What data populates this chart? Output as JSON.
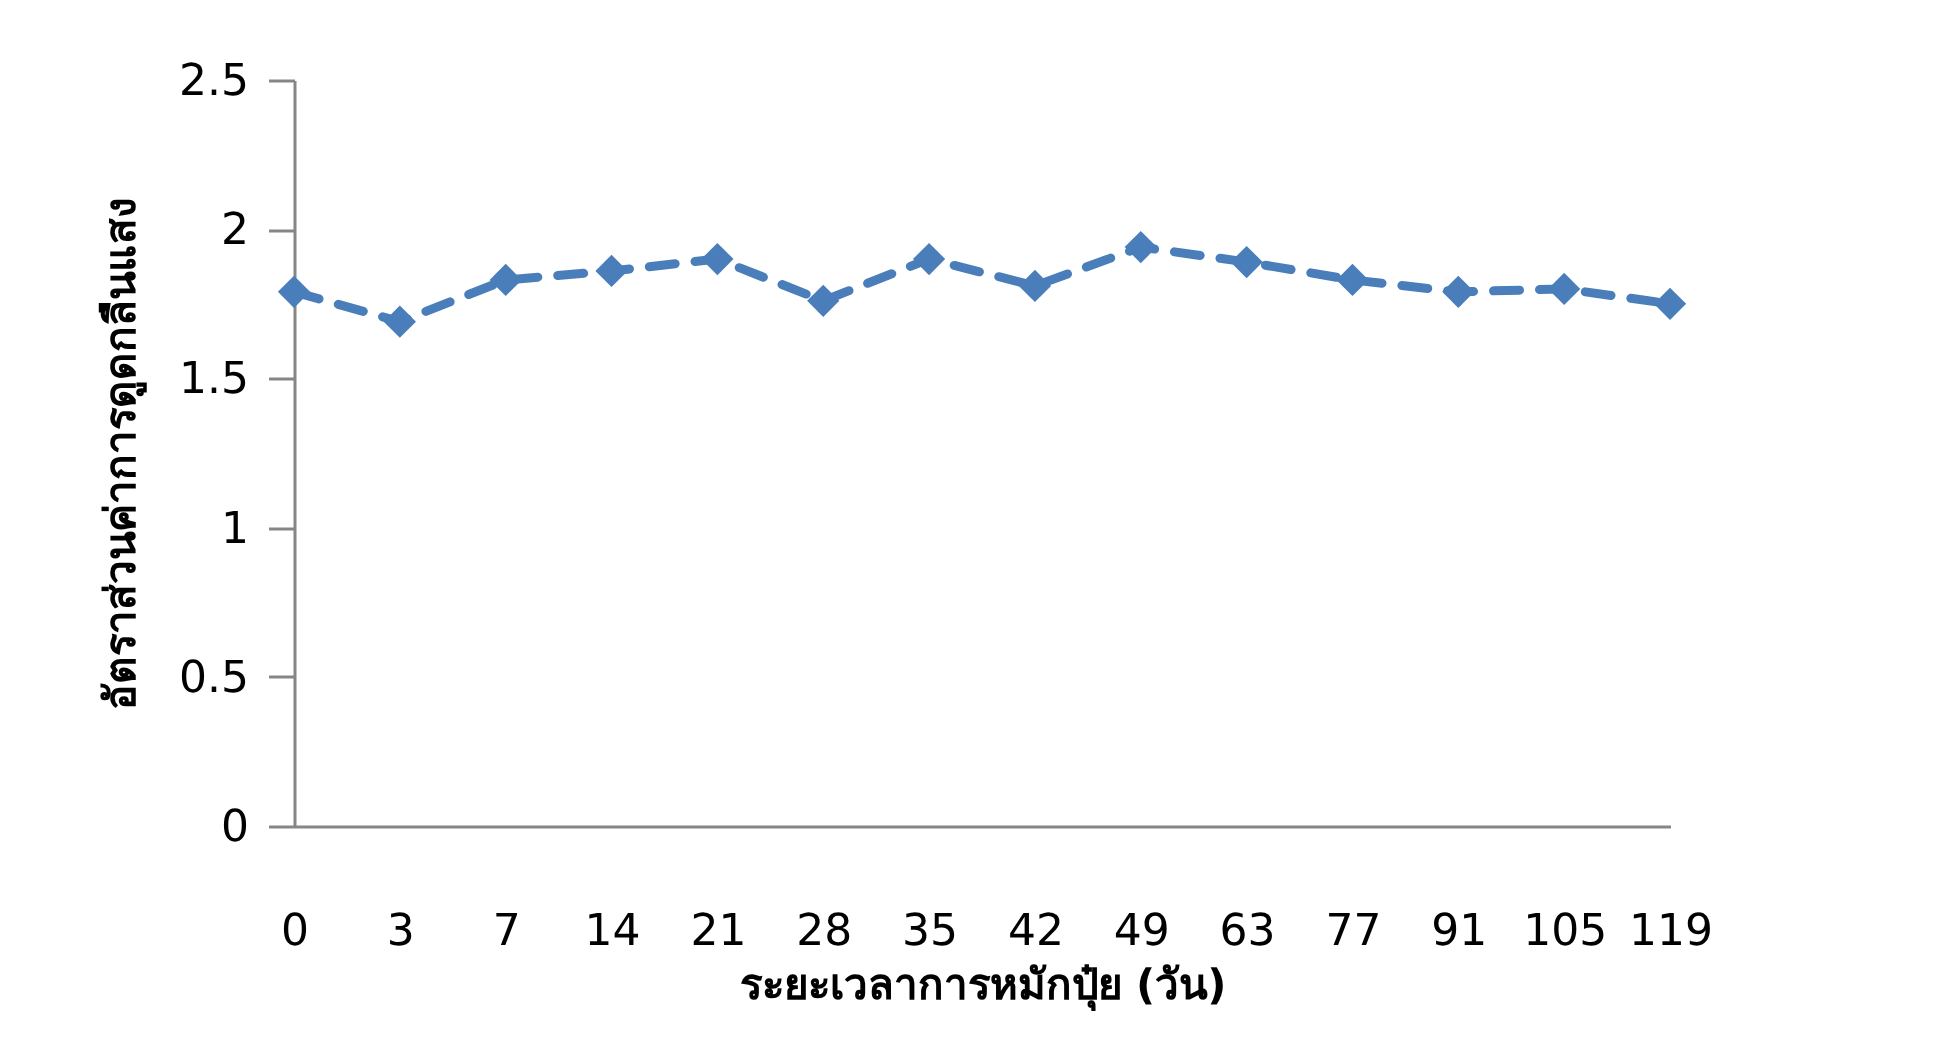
{
  "chart_data": {
    "type": "line",
    "xlabel": "ระยะเวลาการหมักปุ๋ย (วัน)",
    "ylabel": "อัตราส่วนค่าการดูดกลืนแสง",
    "categories": [
      "0",
      "3",
      "7",
      "14",
      "21",
      "28",
      "35",
      "42",
      "49",
      "63",
      "77",
      "91",
      "105",
      "119"
    ],
    "series": [
      {
        "color": "#4a7ebb",
        "values": [
          1.79,
          1.69,
          1.83,
          1.86,
          1.9,
          1.76,
          1.9,
          1.81,
          1.94,
          1.89,
          1.83,
          1.79,
          1.8,
          1.75
        ]
      }
    ],
    "ylim": [
      0,
      2.5
    ],
    "yticks": [
      0,
      0.5,
      1,
      1.5,
      2,
      2.5
    ],
    "grid": false,
    "marker": "diamond",
    "line_style": "dashed"
  }
}
